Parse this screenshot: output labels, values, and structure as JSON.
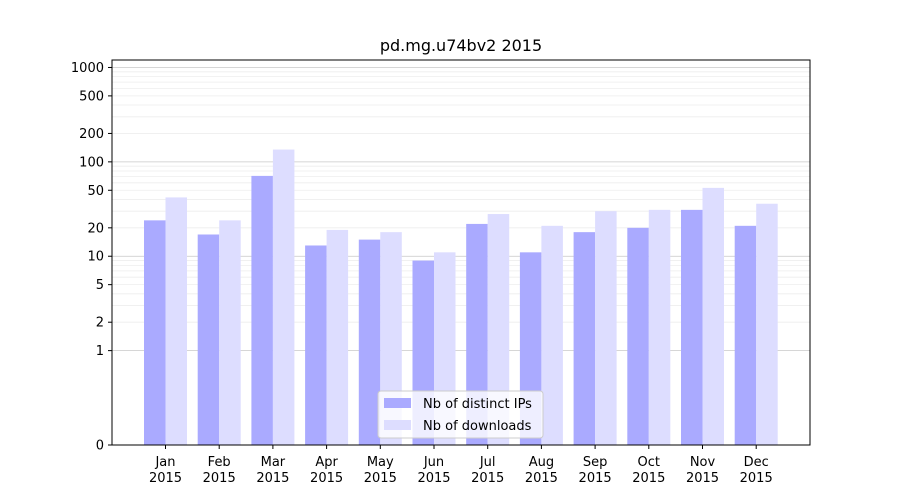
{
  "chart_data": {
    "type": "bar",
    "title": "pd.mg.u74bv2 2015",
    "xlabel": "",
    "ylabel": "",
    "yscale": "symlog",
    "ylim": [
      0,
      1200
    ],
    "yticks": [
      0,
      1,
      2,
      5,
      10,
      20,
      50,
      100,
      200,
      500,
      1000
    ],
    "ytick_labels": [
      "0",
      "1",
      "2",
      "5",
      "10",
      "20",
      "50",
      "100",
      "200",
      "500",
      "1000"
    ],
    "categories": [
      "Jan",
      "Feb",
      "Mar",
      "Apr",
      "May",
      "Jun",
      "Jul",
      "Aug",
      "Sep",
      "Oct",
      "Nov",
      "Dec"
    ],
    "category_year": "2015",
    "series": [
      {
        "name": "Nb of distinct IPs",
        "color": "#aaaaff",
        "values": [
          24,
          17,
          71,
          13,
          15,
          9,
          22,
          11,
          18,
          20,
          31,
          21
        ]
      },
      {
        "name": "Nb of downloads",
        "color": "#ddddff",
        "values": [
          42,
          24,
          135,
          19,
          18,
          11,
          28,
          21,
          30,
          31,
          53,
          36
        ]
      }
    ],
    "grid": true,
    "legend_position": "bottom-center"
  }
}
